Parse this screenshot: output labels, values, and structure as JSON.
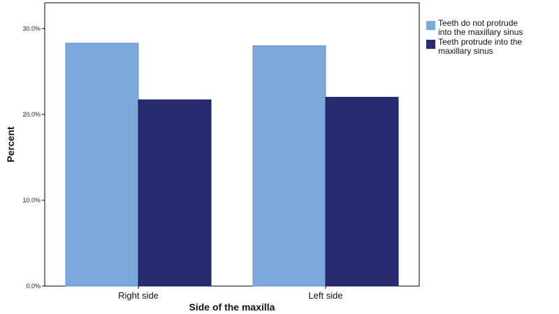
{
  "chart_data": {
    "type": "bar",
    "categories": [
      "Right side",
      "Left side"
    ],
    "series": [
      {
        "name": "Teeth do not protrude into the maxillary sinus",
        "legend_lines": [
          "Teeth do not protrude",
          "into the maxillary sinus"
        ],
        "values": [
          28.3,
          28.0
        ],
        "color": "#7aa8d8"
      },
      {
        "name": "Teeth protrude into the maxillary sinus",
        "legend_lines": [
          "Teeth protrude into the",
          "maxillary sinus"
        ],
        "values": [
          21.7,
          22.0
        ],
        "color": "#262a70"
      }
    ],
    "xlabel": "Side of the maxilla",
    "ylabel": "Percent",
    "ylim": [
      0,
      33.0
    ],
    "yticks": [
      0,
      10,
      20,
      30
    ],
    "ytick_labels": [
      "0.0%",
      "10.0%",
      "20.0%",
      "30.0%"
    ],
    "grid": false,
    "legend_position": "right"
  }
}
